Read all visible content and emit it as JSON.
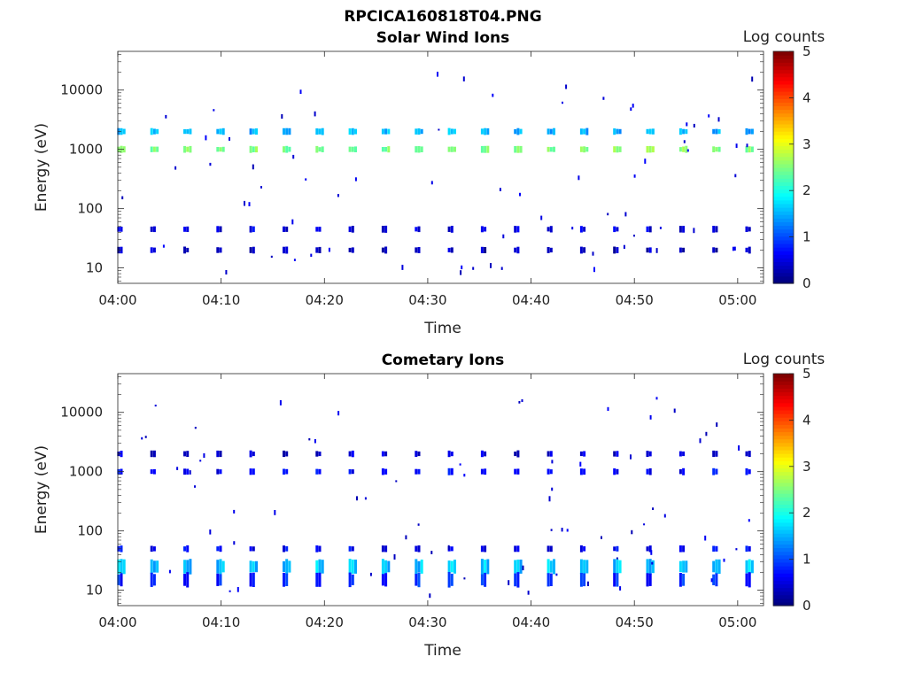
{
  "figure": {
    "title": "RPCICA160818T04.PNG"
  },
  "chart_data": [
    {
      "type": "heatmap",
      "title": "Solar Wind Ions",
      "xlabel": "Time",
      "ylabel": "Energy (eV)",
      "x_tick_labels": [
        "04:00",
        "04:10",
        "04:20",
        "04:30",
        "04:40",
        "04:50",
        "05:00"
      ],
      "x_tick_minutes": [
        0,
        10,
        20,
        30,
        40,
        50,
        60
      ],
      "xlim_minutes": [
        0,
        62.5
      ],
      "y_scale": "log",
      "ylim": [
        5.5,
        45000
      ],
      "y_tick_labels": [
        "10",
        "100",
        "1000",
        "10000"
      ],
      "y_tick_values": [
        10,
        100,
        1000,
        10000
      ],
      "colorbar": {
        "label": "Log counts",
        "range": [
          0,
          5
        ],
        "tick_labels": [
          "0",
          "1",
          "2",
          "3",
          "4",
          "5"
        ],
        "colormap": "jet"
      },
      "sweep_interval_minutes": 3.2,
      "sweep_start_minute": 0.2,
      "features": [
        {
          "energy": 1000,
          "log_counts": 2.5
        },
        {
          "energy": 2000,
          "log_counts": 1.5
        },
        {
          "energy": 45,
          "log_counts": 0.5
        },
        {
          "energy": 20,
          "log_counts": 0.3
        }
      ]
    },
    {
      "type": "heatmap",
      "title": "Cometary Ions",
      "xlabel": "Time",
      "ylabel": "Energy (eV)",
      "x_tick_labels": [
        "04:00",
        "04:10",
        "04:20",
        "04:30",
        "04:40",
        "04:50",
        "05:00"
      ],
      "x_tick_minutes": [
        0,
        10,
        20,
        30,
        40,
        50,
        60
      ],
      "xlim_minutes": [
        0,
        62.5
      ],
      "y_scale": "log",
      "ylim": [
        5.5,
        45000
      ],
      "y_tick_labels": [
        "10",
        "100",
        "1000",
        "10000"
      ],
      "y_tick_values": [
        10,
        100,
        1000,
        10000
      ],
      "colorbar": {
        "label": "Log counts",
        "range": [
          0,
          5
        ],
        "tick_labels": [
          "0",
          "1",
          "2",
          "3",
          "4",
          "5"
        ],
        "colormap": "jet"
      },
      "sweep_interval_minutes": 3.2,
      "sweep_start_minute": 0.2,
      "features": [
        {
          "energy": 1000,
          "log_counts": 0.6
        },
        {
          "energy": 2000,
          "log_counts": 0.4
        },
        {
          "energy": 50,
          "log_counts": 0.6
        },
        {
          "energy": 25,
          "log_counts": 1.6
        },
        {
          "energy": 15,
          "log_counts": 0.8
        }
      ]
    }
  ]
}
